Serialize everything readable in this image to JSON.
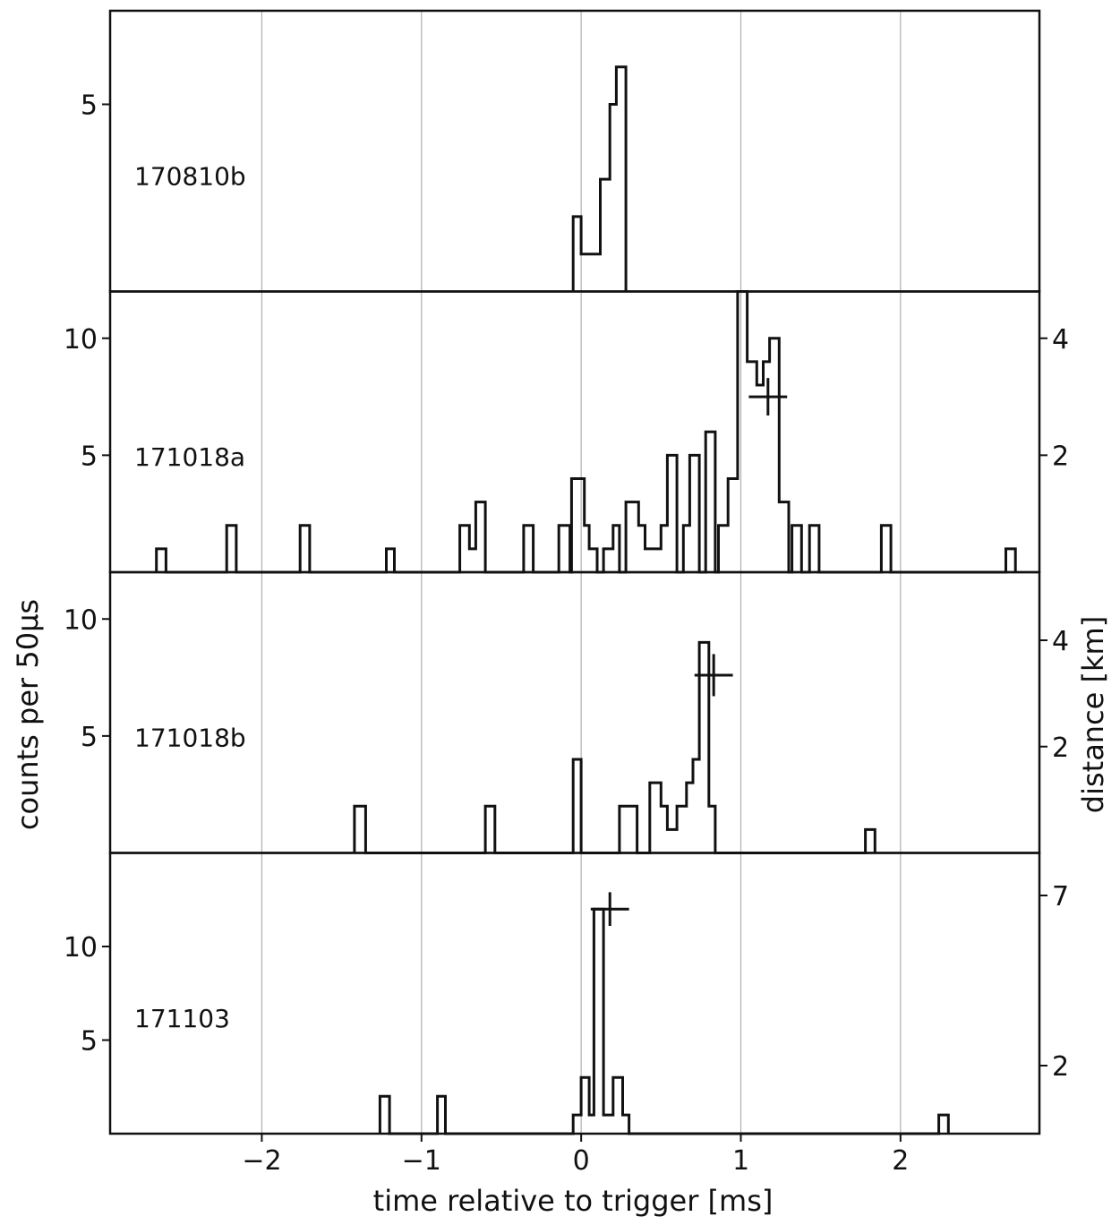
{
  "chart_data": {
    "type": "histogram",
    "xlabel": "time relative to trigger [ms]",
    "ylabel": "counts per 50μs",
    "y2label": "distance [km]",
    "xlim": [
      -2.95,
      2.87
    ],
    "xticks": [
      {
        "v": -2,
        "label": "−2"
      },
      {
        "v": -1,
        "label": "−1"
      },
      {
        "v": 0,
        "label": "0"
      },
      {
        "v": 1,
        "label": "1"
      },
      {
        "v": 2,
        "label": "2"
      }
    ],
    "bin_width_ms": 0.05,
    "grid": "vertical",
    "panels": [
      {
        "label": "170810b",
        "ylim": [
          0,
          7.5
        ],
        "yticks": [
          5
        ],
        "right_axis": null,
        "marker": null,
        "steps": [
          [
            -0.05,
            0
          ],
          [
            -0.05,
            2
          ],
          [
            0.0,
            2
          ],
          [
            0.0,
            1
          ],
          [
            0.12,
            1
          ],
          [
            0.12,
            3
          ],
          [
            0.18,
            3
          ],
          [
            0.18,
            5
          ],
          [
            0.22,
            5
          ],
          [
            0.22,
            6
          ],
          [
            0.28,
            6
          ],
          [
            0.28,
            0
          ]
        ]
      },
      {
        "label": "171018a",
        "ylim": [
          0,
          12.0
        ],
        "yticks": [
          5,
          10
        ],
        "right_axis": {
          "ticks": [
            2,
            4
          ],
          "km_per_count": 0.4
        },
        "marker": {
          "t": 1.17,
          "y": 7.5,
          "xerr": 0.12,
          "yerr": 0.8
        },
        "steps": [
          [
            -2.66,
            0
          ],
          [
            -2.66,
            1
          ],
          [
            -2.6,
            1
          ],
          [
            -2.6,
            0
          ],
          [
            -2.22,
            0
          ],
          [
            -2.22,
            2
          ],
          [
            -2.16,
            2
          ],
          [
            -2.16,
            0
          ],
          [
            -1.76,
            0
          ],
          [
            -1.76,
            2
          ],
          [
            -1.7,
            2
          ],
          [
            -1.7,
            0
          ],
          [
            -1.22,
            0
          ],
          [
            -1.22,
            1
          ],
          [
            -1.17,
            1
          ],
          [
            -1.17,
            0
          ],
          [
            -0.76,
            0
          ],
          [
            -0.76,
            2
          ],
          [
            -0.7,
            2
          ],
          [
            -0.7,
            1
          ],
          [
            -0.66,
            1
          ],
          [
            -0.66,
            3
          ],
          [
            -0.6,
            3
          ],
          [
            -0.6,
            0
          ],
          [
            -0.36,
            0
          ],
          [
            -0.36,
            2
          ],
          [
            -0.3,
            2
          ],
          [
            -0.3,
            0
          ],
          [
            -0.14,
            0
          ],
          [
            -0.14,
            2
          ],
          [
            -0.07,
            2
          ],
          [
            -0.07,
            0
          ],
          [
            -0.06,
            0
          ],
          [
            -0.06,
            4
          ],
          [
            0.02,
            4
          ],
          [
            0.02,
            2
          ],
          [
            0.05,
            2
          ],
          [
            0.05,
            1
          ],
          [
            0.1,
            1
          ],
          [
            0.1,
            0
          ],
          [
            0.14,
            0
          ],
          [
            0.14,
            1
          ],
          [
            0.2,
            1
          ],
          [
            0.2,
            2
          ],
          [
            0.24,
            2
          ],
          [
            0.24,
            0
          ],
          [
            0.28,
            0
          ],
          [
            0.28,
            3
          ],
          [
            0.36,
            3
          ],
          [
            0.36,
            2
          ],
          [
            0.4,
            2
          ],
          [
            0.4,
            1
          ],
          [
            0.5,
            1
          ],
          [
            0.5,
            2
          ],
          [
            0.54,
            2
          ],
          [
            0.54,
            5
          ],
          [
            0.6,
            5
          ],
          [
            0.6,
            0
          ],
          [
            0.64,
            0
          ],
          [
            0.64,
            2
          ],
          [
            0.68,
            2
          ],
          [
            0.68,
            5
          ],
          [
            0.74,
            5
          ],
          [
            0.74,
            0
          ],
          [
            0.78,
            0
          ],
          [
            0.78,
            6
          ],
          [
            0.84,
            6
          ],
          [
            0.84,
            0
          ],
          [
            0.86,
            0
          ],
          [
            0.86,
            2
          ],
          [
            0.92,
            2
          ],
          [
            0.92,
            4
          ],
          [
            0.98,
            4
          ],
          [
            0.98,
            12
          ],
          [
            1.04,
            12
          ],
          [
            1.04,
            9
          ],
          [
            1.1,
            9
          ],
          [
            1.1,
            8
          ],
          [
            1.14,
            8
          ],
          [
            1.14,
            9
          ],
          [
            1.18,
            9
          ],
          [
            1.18,
            10
          ],
          [
            1.24,
            10
          ],
          [
            1.24,
            3
          ],
          [
            1.3,
            3
          ],
          [
            1.3,
            0
          ],
          [
            1.32,
            0
          ],
          [
            1.32,
            2
          ],
          [
            1.38,
            2
          ],
          [
            1.38,
            0
          ],
          [
            1.43,
            0
          ],
          [
            1.43,
            2
          ],
          [
            1.49,
            2
          ],
          [
            1.49,
            0
          ],
          [
            1.88,
            0
          ],
          [
            1.88,
            2
          ],
          [
            1.94,
            2
          ],
          [
            1.94,
            0
          ],
          [
            2.66,
            0
          ],
          [
            2.66,
            1
          ],
          [
            2.72,
            1
          ],
          [
            2.72,
            0
          ]
        ]
      },
      {
        "label": "171018b",
        "ylim": [
          0,
          12.0
        ],
        "yticks": [
          5,
          10
        ],
        "right_axis": {
          "ticks": [
            2,
            4
          ],
          "km_per_count": 0.44
        },
        "marker": {
          "t": 0.83,
          "y": 7.6,
          "xerr": 0.12,
          "yerr": 0.9
        },
        "steps": [
          [
            -1.42,
            0
          ],
          [
            -1.42,
            2
          ],
          [
            -1.35,
            2
          ],
          [
            -1.35,
            0
          ],
          [
            -0.6,
            0
          ],
          [
            -0.6,
            2
          ],
          [
            -0.54,
            2
          ],
          [
            -0.54,
            0
          ],
          [
            -0.05,
            0
          ],
          [
            -0.05,
            4
          ],
          [
            0.0,
            4
          ],
          [
            0.0,
            0
          ],
          [
            0.24,
            0
          ],
          [
            0.24,
            2
          ],
          [
            0.35,
            2
          ],
          [
            0.35,
            0
          ],
          [
            0.43,
            0
          ],
          [
            0.43,
            3
          ],
          [
            0.5,
            3
          ],
          [
            0.5,
            2
          ],
          [
            0.54,
            2
          ],
          [
            0.54,
            1
          ],
          [
            0.6,
            1
          ],
          [
            0.6,
            2
          ],
          [
            0.66,
            2
          ],
          [
            0.66,
            3
          ],
          [
            0.7,
            3
          ],
          [
            0.7,
            4
          ],
          [
            0.74,
            4
          ],
          [
            0.74,
            9
          ],
          [
            0.8,
            9
          ],
          [
            0.8,
            2
          ],
          [
            0.84,
            2
          ],
          [
            0.84,
            0
          ],
          [
            1.78,
            0
          ],
          [
            1.78,
            1
          ],
          [
            1.84,
            1
          ],
          [
            1.84,
            0
          ]
        ]
      },
      {
        "label": "171103",
        "ylim": [
          0,
          15.0
        ],
        "yticks": [
          5,
          10
        ],
        "right_axis": {
          "ticks": [
            2,
            7
          ],
          "km_per_count": 0.55
        },
        "marker": {
          "t": 0.18,
          "y": 12.0,
          "xerr": 0.12,
          "yerr": 0.9
        },
        "steps": [
          [
            -1.26,
            0
          ],
          [
            -1.26,
            2
          ],
          [
            -1.2,
            2
          ],
          [
            -1.2,
            0
          ],
          [
            -0.9,
            0
          ],
          [
            -0.9,
            2
          ],
          [
            -0.85,
            2
          ],
          [
            -0.85,
            0
          ],
          [
            -0.05,
            0
          ],
          [
            -0.05,
            1
          ],
          [
            0.0,
            1
          ],
          [
            0.0,
            3
          ],
          [
            0.05,
            3
          ],
          [
            0.05,
            1
          ],
          [
            0.08,
            1
          ],
          [
            0.08,
            12
          ],
          [
            0.14,
            12
          ],
          [
            0.14,
            1
          ],
          [
            0.2,
            1
          ],
          [
            0.2,
            3
          ],
          [
            0.26,
            3
          ],
          [
            0.26,
            1
          ],
          [
            0.3,
            1
          ],
          [
            0.3,
            0
          ],
          [
            2.24,
            0
          ],
          [
            2.24,
            1
          ],
          [
            2.3,
            1
          ],
          [
            2.3,
            0
          ]
        ]
      }
    ]
  }
}
